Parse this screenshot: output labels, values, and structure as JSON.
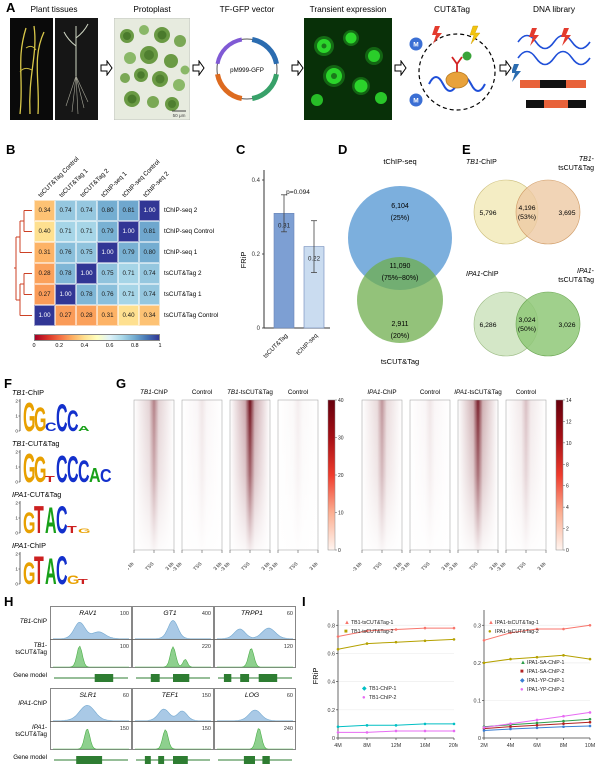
{
  "panel_labels": {
    "A": "A",
    "B": "B",
    "C": "C",
    "D": "D",
    "E": "E",
    "F": "F",
    "G": "G",
    "H": "H",
    "I": "I"
  },
  "workflow": {
    "steps": [
      "Plant tissues",
      "Protoplast",
      "TF-GFP vector",
      "Transient expression",
      "CUT&Tag",
      "DNA library"
    ],
    "plasmid_name": "pM999-GFP",
    "scale_bar": "50 μm",
    "m_label": "M"
  },
  "heatmap_b": {
    "type": "heatmap",
    "col_labels": [
      "tsCUT&Tag Control",
      "tsCUT&Tag 1",
      "tsCUT&Tag 2",
      "tChIP-seq 1",
      "tChIP-seq Control",
      "tChIP-seq 2"
    ],
    "row_labels": [
      "tChIP-seq 2",
      "tChIP-seq Control",
      "tChIP-seq 1",
      "tsCUT&Tag 2",
      "tsCUT&Tag 1",
      "tsCUT&Tag Control"
    ],
    "values": [
      [
        0.34,
        0.74,
        0.74,
        0.8,
        0.81,
        1.0
      ],
      [
        0.4,
        0.71,
        0.71,
        0.79,
        1.0,
        0.81
      ],
      [
        0.31,
        0.76,
        0.75,
        1.0,
        0.79,
        0.8
      ],
      [
        0.28,
        0.78,
        1.0,
        0.75,
        0.71,
        0.74
      ],
      [
        0.27,
        1.0,
        0.78,
        0.76,
        0.71,
        0.74
      ],
      [
        1.0,
        0.27,
        0.28,
        0.31,
        0.4,
        0.34
      ]
    ],
    "colorbar_ticks": [
      "0",
      "0.2",
      "0.4",
      "0.6",
      "0.8",
      "1"
    ]
  },
  "frip_bar": {
    "type": "bar",
    "ylabel": "FRiP",
    "p_label": "p=0.094",
    "categories": [
      "tsCUT&Tag",
      "tChIP-seq"
    ],
    "values": [
      0.31,
      0.22
    ],
    "labels": [
      "0.31",
      "0.22"
    ],
    "errors": [
      0.05,
      0.07
    ],
    "yticks": [
      0,
      0.2,
      0.4
    ],
    "ymax": 0.4,
    "colors": [
      "#7d9fd3",
      "#cadcf0"
    ]
  },
  "venn_d": {
    "top_label": "tChIP-seq",
    "bottom_label": "tsCUT&Tag",
    "top_value": "6,104",
    "top_pct": "(25%)",
    "mid_value": "11,090",
    "mid_pct": "(75%~80%)",
    "bottom_value": "2,911",
    "bottom_pct": "(20%)"
  },
  "venn_e": {
    "top": {
      "left_gene": "TB1",
      "left_rest": "-ChIP",
      "right_line1_gene": "TB1",
      "right_line1_rest": "-",
      "right_line2": "tsCUT&Tag",
      "left": "5,796",
      "mid": "4,196",
      "mid_pct": "(53%)",
      "right": "3,695"
    },
    "bottom": {
      "left_gene": "IPA1",
      "left_rest": "-ChIP",
      "right_line1_gene": "IPA1",
      "right_line1_rest": "-",
      "right_line2": "tsCUT&Tag",
      "left": "6,286",
      "mid": "3,024",
      "mid_pct": "(50%)",
      "right": "3,026"
    }
  },
  "motifs": {
    "yticks": [
      "2",
      "1",
      "0"
    ],
    "items": [
      {
        "gene": "TB1",
        "rest": "-ChIP",
        "letters": [
          [
            "G",
            1.0
          ],
          [
            "G",
            0.85
          ],
          [
            "C",
            0.3
          ],
          [
            "C",
            0.95
          ],
          [
            "C",
            0.72
          ],
          [
            "A",
            0.18
          ]
        ]
      },
      {
        "gene": "TB1",
        "rest": "-CUT&Tag",
        "letters": [
          [
            "G",
            1.0
          ],
          [
            "G",
            0.88
          ],
          [
            "T",
            0.2
          ],
          [
            "C",
            0.93
          ],
          [
            "C",
            0.9
          ],
          [
            "C",
            0.78
          ],
          [
            "A",
            0.5
          ],
          [
            "C",
            0.45
          ]
        ]
      },
      {
        "gene": "IPA1",
        "rest": "-CUT&Tag",
        "letters": [
          [
            "G",
            0.72
          ],
          [
            "T",
            0.95
          ],
          [
            "A",
            0.9
          ],
          [
            "C",
            0.95
          ],
          [
            "T",
            0.25
          ],
          [
            "G",
            0.15
          ]
        ]
      },
      {
        "gene": "IPA1",
        "rest": "-ChIP",
        "letters": [
          [
            "G",
            0.78
          ],
          [
            "T",
            0.97
          ],
          [
            "A",
            0.92
          ],
          [
            "C",
            0.97
          ],
          [
            "G",
            0.3
          ],
          [
            "T",
            0.18
          ]
        ]
      }
    ]
  },
  "profile_g": {
    "xticks": [
      "-3 kb",
      "TSS",
      "3 kb"
    ],
    "colorbar1_ticks": [
      "40",
      "30",
      "20",
      "10",
      "0"
    ],
    "colorbar2_ticks": [
      "14",
      "12",
      "10",
      "8",
      "6",
      "4",
      "2",
      "0"
    ],
    "columns": [
      {
        "gene": "TB1",
        "rest": "-ChIP",
        "intensity": 0.5
      },
      {
        "gene": "",
        "rest": "Control",
        "intensity": 0.1
      },
      {
        "gene": "TB1",
        "rest": "-tsCUT&Tag",
        "intensity": 0.95
      },
      {
        "gene": "",
        "rest": "Control",
        "intensity": 0.07
      },
      {
        "gene": "IPA1",
        "rest": "-ChIP",
        "intensity": 0.42
      },
      {
        "gene": "",
        "rest": "Control",
        "intensity": 0.1
      },
      {
        "gene": "IPA1",
        "rest": "-tsCUT&Tag",
        "intensity": 0.88
      },
      {
        "gene": "",
        "rest": "Control",
        "intensity": 0.25
      }
    ]
  },
  "tracks_h": {
    "groups": [
      {
        "row1_gene": "TB1",
        "row1_rest": "-ChIP",
        "row2_line1_gene": "TB1",
        "row2_line1_rest": "-",
        "row2_line2": "tsCUT&Tag",
        "row3": "Gene model",
        "genes": [
          "RAV1",
          "GT1",
          "TRPP1"
        ],
        "chip_values": [
          "100",
          "400",
          "60"
        ],
        "cut_values": [
          "100",
          "220",
          "120"
        ]
      },
      {
        "row1_gene": "IPA1",
        "row1_rest": "-ChIP",
        "row2_line1_gene": "IPA1",
        "row2_line1_rest": "-",
        "row2_line2": "tsCUT&Tag",
        "row3": "Gene model",
        "genes": [
          "SLR1",
          "TEF1",
          "LOG"
        ],
        "chip_values": [
          "60",
          "150",
          "60"
        ],
        "cut_values": [
          "150",
          "150",
          "240"
        ]
      }
    ]
  },
  "saturation_i": {
    "left": {
      "type": "line",
      "ylabel": "FRiP",
      "ymax": 0.88,
      "yticks": [
        0,
        0.2,
        0.4,
        0.6,
        0.8
      ],
      "x": [
        "4M",
        "8M",
        "12M",
        "16M",
        "20M"
      ],
      "series": [
        {
          "name": "TB1-tsCUT&Tag-1",
          "color": "#f8766d",
          "marker": "▲",
          "values": [
            0.72,
            0.76,
            0.77,
            0.78,
            0.78
          ]
        },
        {
          "name": "TB1-tsCUT&Tag-2",
          "color": "#b5a100",
          "marker": "■",
          "values": [
            0.63,
            0.67,
            0.68,
            0.69,
            0.7
          ]
        },
        {
          "name": "TB1-ChIP-1",
          "color": "#00bfc4",
          "marker": "◆",
          "values": [
            0.08,
            0.09,
            0.09,
            0.1,
            0.1
          ]
        },
        {
          "name": "TB1-ChIP-2",
          "color": "#e76bf3",
          "marker": "●",
          "values": [
            0.04,
            0.04,
            0.05,
            0.05,
            0.05
          ]
        }
      ]
    },
    "right": {
      "type": "line",
      "ymax": 0.33,
      "yticks": [
        0,
        0.1,
        0.2,
        0.3
      ],
      "x": [
        "2M",
        "4M",
        "6M",
        "8M",
        "10M"
      ],
      "series": [
        {
          "name": "IPA1-tsCUT&Tag-1",
          "color": "#f8766d",
          "marker": "▲",
          "values": [
            0.26,
            0.28,
            0.29,
            0.29,
            0.3
          ]
        },
        {
          "name": "IPA1-tsCUT&Tag-2",
          "color": "#b5a100",
          "marker": "●",
          "values": [
            0.2,
            0.21,
            0.215,
            0.22,
            0.21
          ]
        },
        {
          "name": "IPA1-SA-ChIP-1",
          "color": "#2e9e4b",
          "marker": "▲",
          "values": [
            0.03,
            0.035,
            0.04,
            0.045,
            0.05
          ]
        },
        {
          "name": "IPA1-SA-ChIP-2",
          "color": "#b22222",
          "marker": "■",
          "values": [
            0.025,
            0.03,
            0.034,
            0.038,
            0.042
          ]
        },
        {
          "name": "IPA1-YP-ChIP-1",
          "color": "#3b7fd4",
          "marker": "◆",
          "values": [
            0.02,
            0.024,
            0.027,
            0.03,
            0.032
          ]
        },
        {
          "name": "IPA1-YP-ChIP-2",
          "color": "#e76bf3",
          "marker": "●",
          "values": [
            0.028,
            0.038,
            0.048,
            0.058,
            0.068
          ]
        }
      ]
    }
  }
}
